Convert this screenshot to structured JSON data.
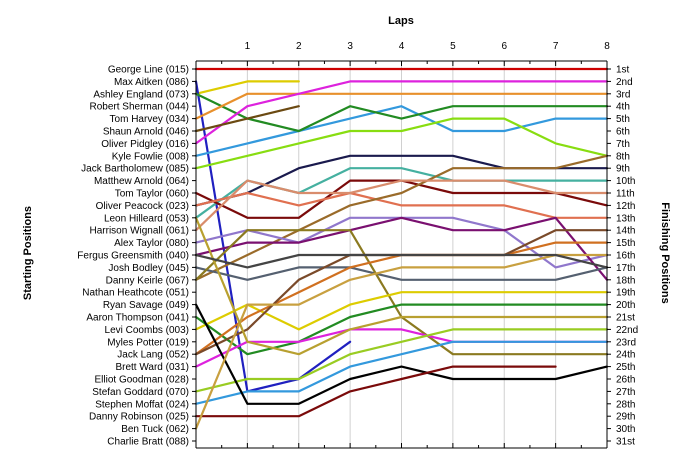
{
  "chart_data": {
    "type": "line",
    "title": "",
    "xlabel": "Laps",
    "ylabel_left": "Starting Positions",
    "ylabel_right": "Finishing Positions",
    "x_ticks": [
      1,
      2,
      3,
      4,
      5,
      6,
      7,
      8
    ],
    "xlim": [
      0,
      8
    ],
    "ylim": [
      1,
      31
    ],
    "y_inverted": true,
    "starting_labels": [
      "George Line (015)",
      "Max Aitken (086)",
      "Ashley England (073)",
      "Robert Sherman (044)",
      "Tom Harvey (034)",
      "Shaun Arnold (046)",
      "Oliver Pidgley (016)",
      "Kyle Fowlie (008)",
      "Jack Bartholomew (085)",
      "Matthew Arnold (064)",
      "Tom Taylor (060)",
      "Oliver Peacock (023)",
      "Leon Hilleard (053)",
      "Harrison Wignall (061)",
      "Alex Taylor (080)",
      "Fergus Greensmith (040)",
      "Josh Bodley (045)",
      "Danny Keirle (067)",
      "Nathan Heathcote (051)",
      "Ryan Savage (049)",
      "Aaron Thompson (041)",
      "Levi Coombs (003)",
      "Myles Potter (019)",
      "Jack Lang (052)",
      "Brett Ward (031)",
      "Elliot Goodman (028)",
      "Stefan Goddard (070)",
      "Stephen Moffat (024)",
      "Danny Robinson (025)",
      "Ben Tuck (062)",
      "Charlie Bratt (088)"
    ],
    "finishing_labels": [
      "1st",
      "2nd",
      "3rd",
      "4th",
      "5th",
      "6th",
      "7th",
      "8th",
      "9th",
      "10th",
      "11th",
      "12th",
      "13th",
      "14th",
      "15th",
      "16th",
      "17th",
      "18th",
      "19th",
      "20th",
      "21st",
      "22nd",
      "23rd",
      "24th",
      "25th",
      "26th",
      "27th",
      "28th",
      "29th",
      "30th",
      "31st"
    ],
    "series": [
      {
        "color": "#CC0000",
        "x": [
          0,
          1,
          2,
          3,
          4,
          5,
          6,
          7,
          8
        ],
        "y": [
          1,
          1,
          1,
          1,
          1,
          1,
          1,
          1,
          1
        ]
      },
      {
        "color": "#DDCC00",
        "x": [
          0,
          1,
          2
        ],
        "y": [
          3,
          2,
          2
        ]
      },
      {
        "color": "#2020C0",
        "x": [
          0,
          1,
          2,
          3
        ],
        "y": [
          2,
          27,
          26,
          23
        ]
      },
      {
        "color": "#3399DD",
        "x": [
          0,
          1,
          2,
          3,
          4,
          5,
          6,
          7,
          8
        ],
        "y": [
          8,
          7,
          6,
          5,
          4,
          6,
          6,
          5,
          5
        ]
      },
      {
        "color": "#228B22",
        "x": [
          0,
          1,
          2,
          3,
          4,
          5,
          6,
          7,
          8
        ],
        "y": [
          3,
          5,
          6,
          4,
          5,
          4,
          4,
          4,
          4
        ]
      },
      {
        "color": "#E8902C",
        "x": [
          0,
          1,
          2,
          3,
          4,
          5,
          6,
          7,
          8
        ],
        "y": [
          5,
          3,
          3,
          3,
          3,
          3,
          3,
          3,
          3
        ]
      },
      {
        "color": "#DD22DD",
        "x": [
          0,
          1,
          2,
          3,
          4,
          5,
          6,
          7,
          8
        ],
        "y": [
          7,
          4,
          3,
          2,
          2,
          2,
          2,
          2,
          2
        ]
      },
      {
        "color": "#88DD11",
        "x": [
          0,
          1,
          2,
          3,
          4,
          5,
          6,
          7,
          8
        ],
        "y": [
          9,
          8,
          7,
          6,
          6,
          5,
          5,
          7,
          8
        ]
      },
      {
        "color": "#1A1A4D",
        "x": [
          0,
          1,
          2,
          3,
          4,
          5,
          6,
          7,
          8
        ],
        "y": [
          12,
          11,
          9,
          8,
          8,
          8,
          9,
          9,
          9
        ]
      },
      {
        "color": "#45B0A0",
        "x": [
          0,
          1,
          2,
          3,
          4,
          5,
          6,
          7,
          8
        ],
        "y": [
          13,
          10,
          11,
          9,
          9,
          10,
          10,
          10,
          10
        ]
      },
      {
        "color": "#7A0A0A",
        "x": [
          0,
          1,
          2,
          3,
          4,
          5,
          6,
          7,
          8
        ],
        "y": [
          11,
          13,
          13,
          10,
          10,
          11,
          11,
          11,
          12
        ]
      },
      {
        "color": "#E07050",
        "x": [
          0,
          1,
          2,
          3,
          4,
          5,
          6,
          7,
          8
        ],
        "y": [
          12,
          11,
          12,
          11,
          12,
          12,
          12,
          13,
          13
        ]
      },
      {
        "color": "#6B4A12",
        "x": [
          0,
          1,
          2
        ],
        "y": [
          6,
          5,
          4
        ]
      },
      {
        "color": "#9A6B2A",
        "x": [
          0,
          1,
          2,
          3,
          4,
          5,
          6,
          7,
          8
        ],
        "y": [
          18,
          16,
          14,
          12,
          11,
          9,
          9,
          9,
          8
        ]
      },
      {
        "color": "#9077CC",
        "x": [
          0,
          1,
          2,
          3,
          4,
          5,
          6,
          7,
          8
        ],
        "y": [
          15,
          14,
          15,
          13,
          13,
          13,
          14,
          17,
          16
        ]
      },
      {
        "color": "#7A1070",
        "x": [
          0,
          1,
          2,
          3,
          4,
          5,
          6,
          7,
          8
        ],
        "y": [
          16,
          15,
          15,
          14,
          13,
          14,
          14,
          13,
          18
        ]
      },
      {
        "color": "#556070",
        "x": [
          0,
          1,
          2,
          3,
          4,
          5,
          6,
          7,
          8
        ],
        "y": [
          17,
          18,
          17,
          17,
          18,
          18,
          18,
          18,
          17
        ]
      },
      {
        "color": "#D98C6C",
        "x": [
          0,
          1,
          2,
          3,
          4,
          5,
          6,
          7,
          8
        ],
        "y": [
          14,
          10,
          11,
          11,
          10,
          10,
          10,
          11,
          11
        ]
      },
      {
        "color": "#8B7A20",
        "x": [
          0,
          1,
          2,
          3,
          4,
          5,
          6,
          7,
          8
        ],
        "y": [
          18,
          14,
          14,
          14,
          21,
          24,
          24,
          24,
          24
        ]
      },
      {
        "color": "#DDCC00",
        "x": [
          0,
          1,
          2,
          3,
          4,
          5,
          6,
          7,
          8
        ],
        "y": [
          22,
          20,
          22,
          20,
          19,
          19,
          19,
          19,
          19
        ]
      },
      {
        "color": "#228B22",
        "x": [
          0,
          1,
          2,
          3,
          4,
          5,
          6,
          7,
          8
        ],
        "y": [
          21,
          24,
          23,
          21,
          20,
          20,
          20,
          20,
          20
        ]
      },
      {
        "color": "#DD22DD",
        "x": [
          0,
          1,
          2,
          3,
          4,
          5,
          6,
          7,
          8
        ],
        "y": [
          25,
          23,
          23,
          22,
          22,
          23,
          23,
          23,
          23
        ]
      },
      {
        "color": "#D07020",
        "x": [
          0,
          1,
          2,
          3,
          4,
          5,
          6,
          7,
          8
        ],
        "y": [
          24,
          21,
          19,
          17,
          16,
          16,
          16,
          15,
          15
        ]
      },
      {
        "color": "#7A4A2A",
        "x": [
          0,
          1,
          2,
          3,
          4,
          5,
          6,
          7,
          8
        ],
        "y": [
          24,
          22,
          18,
          16,
          16,
          16,
          16,
          14,
          14
        ]
      },
      {
        "color": "#99CC22",
        "x": [
          0,
          1,
          2,
          3,
          4,
          5,
          6,
          7,
          8
        ],
        "y": [
          27,
          26,
          26,
          24,
          23,
          22,
          22,
          22,
          22
        ]
      },
      {
        "color": "#3399DD",
        "x": [
          0,
          1,
          2,
          3,
          4,
          5,
          6,
          7,
          8
        ],
        "y": [
          28,
          27,
          27,
          25,
          24,
          23,
          23,
          23,
          23
        ]
      },
      {
        "color": "#000000",
        "x": [
          0,
          1,
          2,
          3,
          4,
          5,
          6,
          7,
          8
        ],
        "y": [
          20,
          28,
          28,
          26,
          25,
          26,
          26,
          26,
          25
        ]
      },
      {
        "color": "#7A0A0A",
        "x": [
          0,
          1,
          2,
          3,
          4,
          5,
          6,
          7
        ],
        "y": [
          29,
          29,
          29,
          27,
          26,
          25,
          25,
          25
        ]
      },
      {
        "color": "#C8A040",
        "x": [
          0,
          1,
          2,
          3,
          4,
          5,
          6,
          7,
          8
        ],
        "y": [
          30,
          20,
          20,
          18,
          17,
          17,
          17,
          16,
          16
        ]
      },
      {
        "color": "#B8A030",
        "x": [
          0,
          1,
          2,
          3,
          4,
          5,
          6,
          7,
          8
        ],
        "y": [
          13,
          23,
          24,
          22,
          21,
          21,
          21,
          21,
          21
        ]
      },
      {
        "color": "#444444",
        "x": [
          0,
          1,
          2,
          3,
          4,
          5,
          6,
          7,
          8
        ],
        "y": [
          16,
          17,
          16,
          16,
          16,
          16,
          16,
          16,
          17
        ]
      }
    ]
  }
}
